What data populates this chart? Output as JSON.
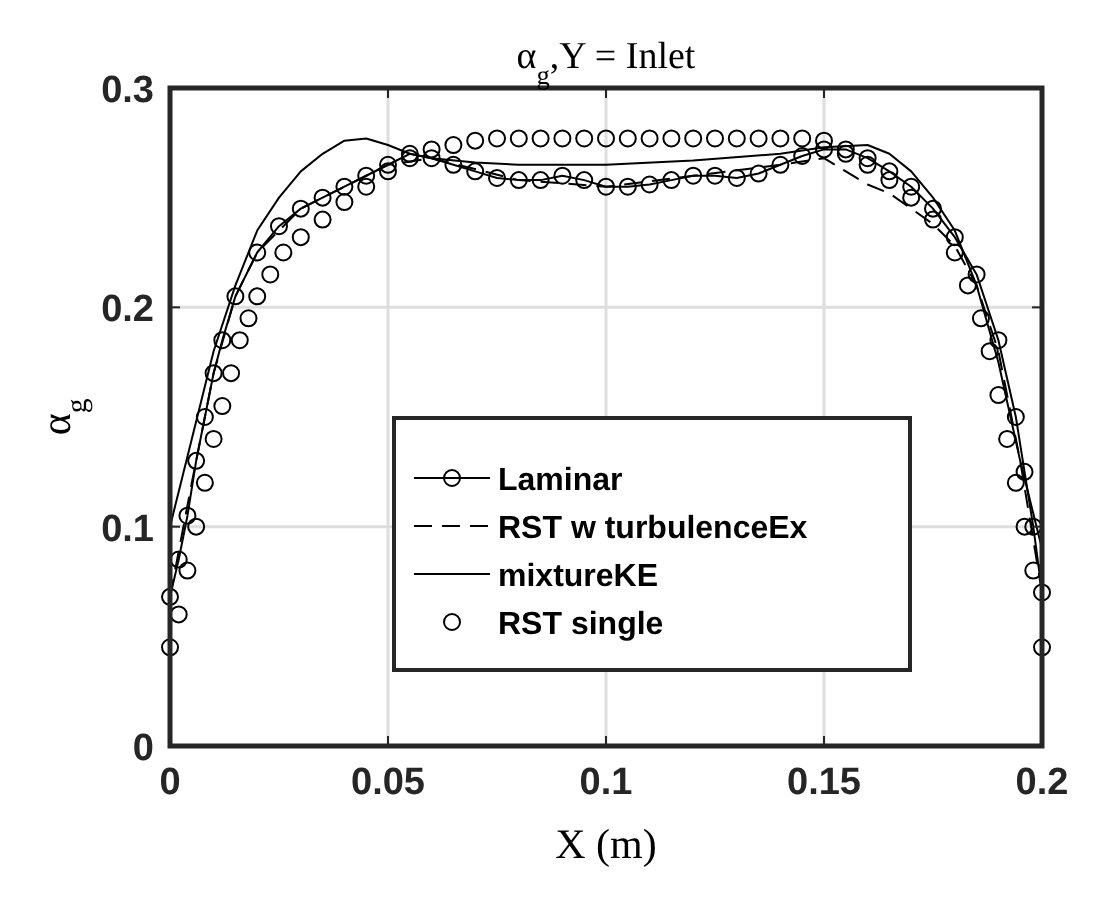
{
  "chart_data": {
    "type": "line",
    "title": "α$_{g}$,Y = Inlet",
    "xlabel": "X (m)",
    "ylabel": "α$_{g}$",
    "xlim": [
      0,
      0.2
    ],
    "ylim": [
      0,
      0.3
    ],
    "xticks": [
      0,
      0.05,
      0.1,
      0.15,
      0.2
    ],
    "yticks": [
      0,
      0.1,
      0.2,
      0.3
    ],
    "grid": true,
    "legend": "bottom",
    "series": [
      {
        "name": "Laminar",
        "color": "#000000",
        "marker": "circle",
        "line_style": "solid",
        "x": [
          0,
          0.002,
          0.004,
          0.006,
          0.008,
          0.01,
          0.012,
          0.015,
          0.02,
          0.025,
          0.03,
          0.035,
          0.04,
          0.045,
          0.05,
          0.055,
          0.06,
          0.065,
          0.07,
          0.075,
          0.08,
          0.085,
          0.09,
          0.095,
          0.1,
          0.105,
          0.11,
          0.115,
          0.12,
          0.125,
          0.13,
          0.135,
          0.14,
          0.145,
          0.15,
          0.155,
          0.16,
          0.165,
          0.17,
          0.175,
          0.18,
          0.185,
          0.19,
          0.194,
          0.196,
          0.198,
          0.2
        ],
        "values": [
          0.068,
          0.085,
          0.105,
          0.13,
          0.15,
          0.17,
          0.185,
          0.205,
          0.225,
          0.237,
          0.245,
          0.25,
          0.255,
          0.26,
          0.265,
          0.27,
          0.268,
          0.265,
          0.262,
          0.259,
          0.258,
          0.258,
          0.26,
          0.258,
          0.255,
          0.255,
          0.256,
          0.258,
          0.26,
          0.26,
          0.259,
          0.261,
          0.265,
          0.269,
          0.272,
          0.272,
          0.268,
          0.262,
          0.255,
          0.245,
          0.232,
          0.215,
          0.185,
          0.15,
          0.125,
          0.1,
          0.07
        ]
      },
      {
        "name": "RST w turbulenceEx",
        "color": "#000000",
        "marker": "none",
        "line_style": "dashed",
        "x": [
          0,
          0.005,
          0.01,
          0.015,
          0.02,
          0.03,
          0.04,
          0.05,
          0.06,
          0.08,
          0.1,
          0.12,
          0.14,
          0.15,
          0.155,
          0.16,
          0.165,
          0.17,
          0.175,
          0.18,
          0.185,
          0.19,
          0.195,
          0.2
        ],
        "values": [
          0.068,
          0.12,
          0.17,
          0.205,
          0.225,
          0.245,
          0.255,
          0.265,
          0.268,
          0.258,
          0.255,
          0.26,
          0.265,
          0.268,
          0.262,
          0.256,
          0.252,
          0.245,
          0.238,
          0.228,
          0.21,
          0.18,
          0.13,
          0.07
        ]
      },
      {
        "name": "mixtureKE",
        "color": "#000000",
        "marker": "none",
        "line_style": "solid",
        "x": [
          0,
          0.005,
          0.01,
          0.015,
          0.02,
          0.025,
          0.03,
          0.035,
          0.04,
          0.045,
          0.05,
          0.055,
          0.06,
          0.07,
          0.08,
          0.1,
          0.12,
          0.14,
          0.15,
          0.16,
          0.165,
          0.17,
          0.175,
          0.18,
          0.185,
          0.19,
          0.195,
          0.2
        ],
        "values": [
          0.1,
          0.14,
          0.18,
          0.21,
          0.235,
          0.25,
          0.262,
          0.27,
          0.276,
          0.277,
          0.274,
          0.27,
          0.268,
          0.266,
          0.265,
          0.265,
          0.267,
          0.27,
          0.273,
          0.274,
          0.27,
          0.262,
          0.25,
          0.235,
          0.21,
          0.175,
          0.13,
          0.09
        ]
      },
      {
        "name": "RST single",
        "type": "scatter",
        "color": "#000000",
        "marker": "circle",
        "x": [
          0,
          0.002,
          0.004,
          0.006,
          0.008,
          0.01,
          0.012,
          0.014,
          0.016,
          0.018,
          0.02,
          0.023,
          0.026,
          0.03,
          0.035,
          0.04,
          0.045,
          0.05,
          0.055,
          0.06,
          0.065,
          0.07,
          0.075,
          0.08,
          0.085,
          0.09,
          0.095,
          0.1,
          0.105,
          0.11,
          0.115,
          0.12,
          0.125,
          0.13,
          0.135,
          0.14,
          0.145,
          0.15,
          0.155,
          0.16,
          0.165,
          0.17,
          0.175,
          0.18,
          0.183,
          0.186,
          0.188,
          0.19,
          0.192,
          0.194,
          0.196,
          0.198,
          0.2
        ],
        "values": [
          0.045,
          0.06,
          0.08,
          0.1,
          0.12,
          0.14,
          0.155,
          0.17,
          0.185,
          0.195,
          0.205,
          0.215,
          0.225,
          0.232,
          0.24,
          0.248,
          0.255,
          0.262,
          0.268,
          0.272,
          0.274,
          0.276,
          0.277,
          0.277,
          0.277,
          0.277,
          0.277,
          0.277,
          0.277,
          0.277,
          0.277,
          0.277,
          0.277,
          0.277,
          0.277,
          0.277,
          0.277,
          0.276,
          0.27,
          0.265,
          0.258,
          0.25,
          0.24,
          0.225,
          0.21,
          0.195,
          0.18,
          0.16,
          0.14,
          0.12,
          0.1,
          0.08,
          0.045
        ]
      }
    ]
  }
}
